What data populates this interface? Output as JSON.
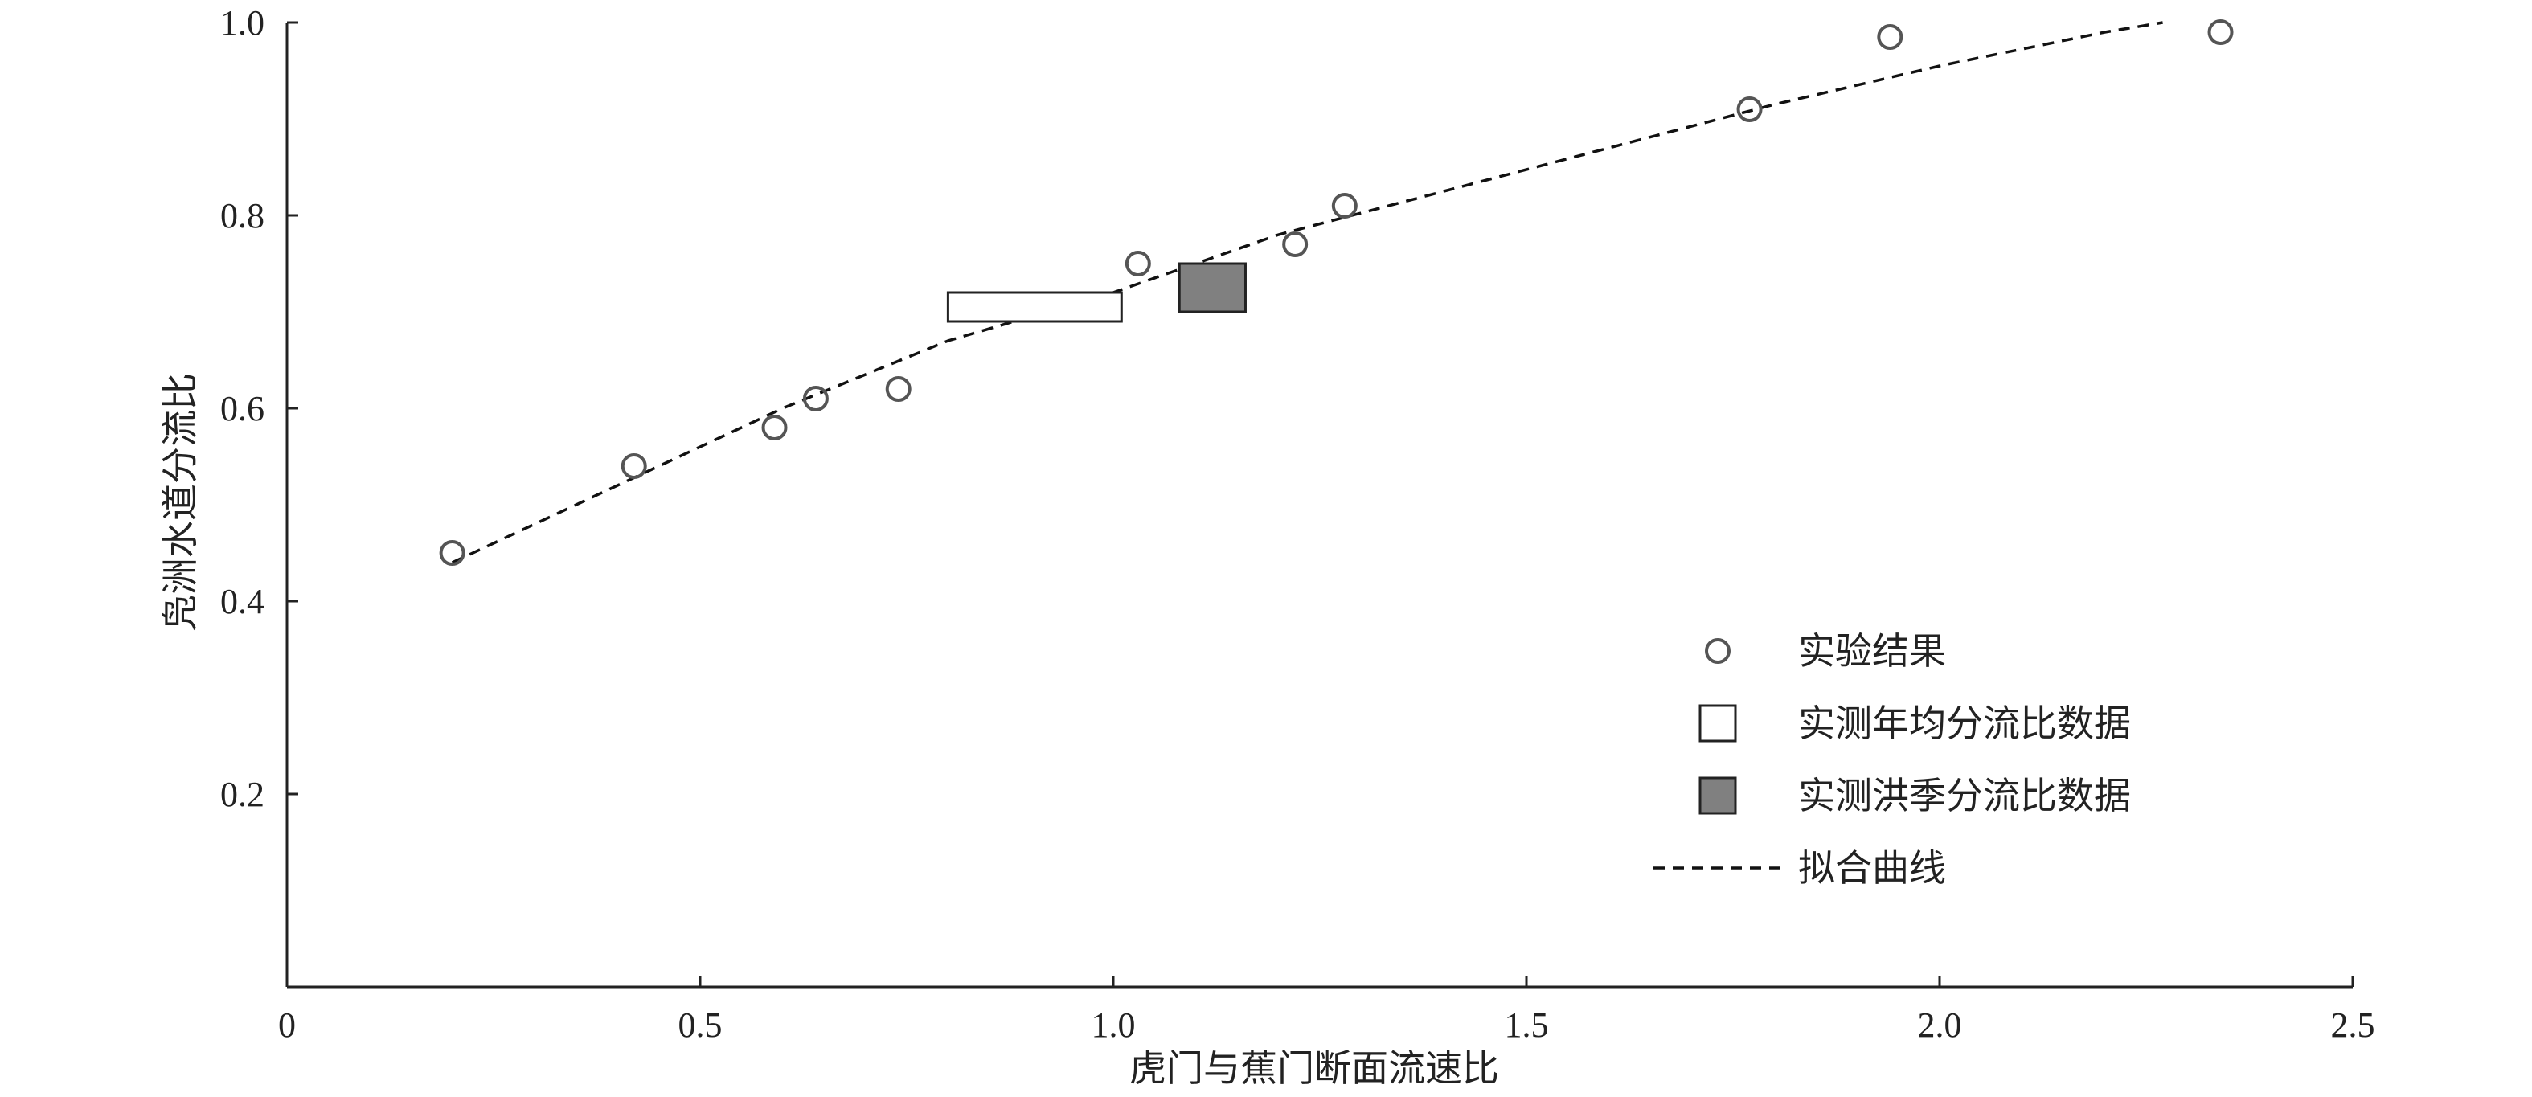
{
  "chart_data": {
    "type": "scatter",
    "title": "",
    "xlabel": "虎门与蕉门断面流速比",
    "ylabel": "凫洲水道分流比",
    "xlim": [
      0,
      2.5
    ],
    "ylim": [
      0,
      1.0
    ],
    "x_ticks": [
      0,
      0.5,
      1.0,
      1.5,
      2.0,
      2.5
    ],
    "x_tick_labels": [
      "0",
      "0.5",
      "1.0",
      "1.5",
      "2.0",
      "2.5"
    ],
    "y_ticks": [
      0.2,
      0.4,
      0.6,
      0.8,
      1.0
    ],
    "y_tick_labels": [
      "0.2",
      "0.4",
      "0.6",
      "0.8",
      "1.0"
    ],
    "grid": false,
    "legend_position": "lower-right",
    "series": [
      {
        "name": "实验结果",
        "kind": "points",
        "marker": "open-circle",
        "color": "#555555",
        "points": [
          [
            0.2,
            0.45
          ],
          [
            0.42,
            0.54
          ],
          [
            0.59,
            0.58
          ],
          [
            0.64,
            0.61
          ],
          [
            0.74,
            0.62
          ],
          [
            1.03,
            0.75
          ],
          [
            1.22,
            0.77
          ],
          [
            1.28,
            0.81
          ],
          [
            1.77,
            0.91
          ],
          [
            1.94,
            0.985
          ],
          [
            2.34,
            0.99
          ]
        ]
      },
      {
        "name": "实测年均分流比数据",
        "kind": "range-box",
        "fill": "#ffffff",
        "stroke": "#222222",
        "x_range": [
          0.8,
          1.01
        ],
        "y_range": [
          0.69,
          0.72
        ]
      },
      {
        "name": "实测洪季分流比数据",
        "kind": "range-box",
        "fill": "#808080",
        "stroke": "#222222",
        "x_range": [
          1.08,
          1.16
        ],
        "y_range": [
          0.7,
          0.75
        ]
      },
      {
        "name": "拟合曲线",
        "kind": "dashed-line",
        "color": "#111111",
        "points": [
          [
            0.2,
            0.44
          ],
          [
            0.4,
            0.52
          ],
          [
            0.6,
            0.6
          ],
          [
            0.8,
            0.67
          ],
          [
            1.0,
            0.72
          ],
          [
            1.2,
            0.78
          ],
          [
            1.4,
            0.825
          ],
          [
            1.6,
            0.87
          ],
          [
            1.8,
            0.915
          ],
          [
            2.0,
            0.955
          ],
          [
            2.2,
            0.99
          ],
          [
            2.27,
            1.0
          ]
        ]
      }
    ],
    "legend": [
      {
        "label": "实验结果",
        "symbol": "open-circle"
      },
      {
        "label": "实测年均分流比数据",
        "symbol": "white-square"
      },
      {
        "label": "实测洪季分流比数据",
        "symbol": "gray-square"
      },
      {
        "label": "拟合曲线",
        "symbol": "dashed-line"
      }
    ]
  }
}
